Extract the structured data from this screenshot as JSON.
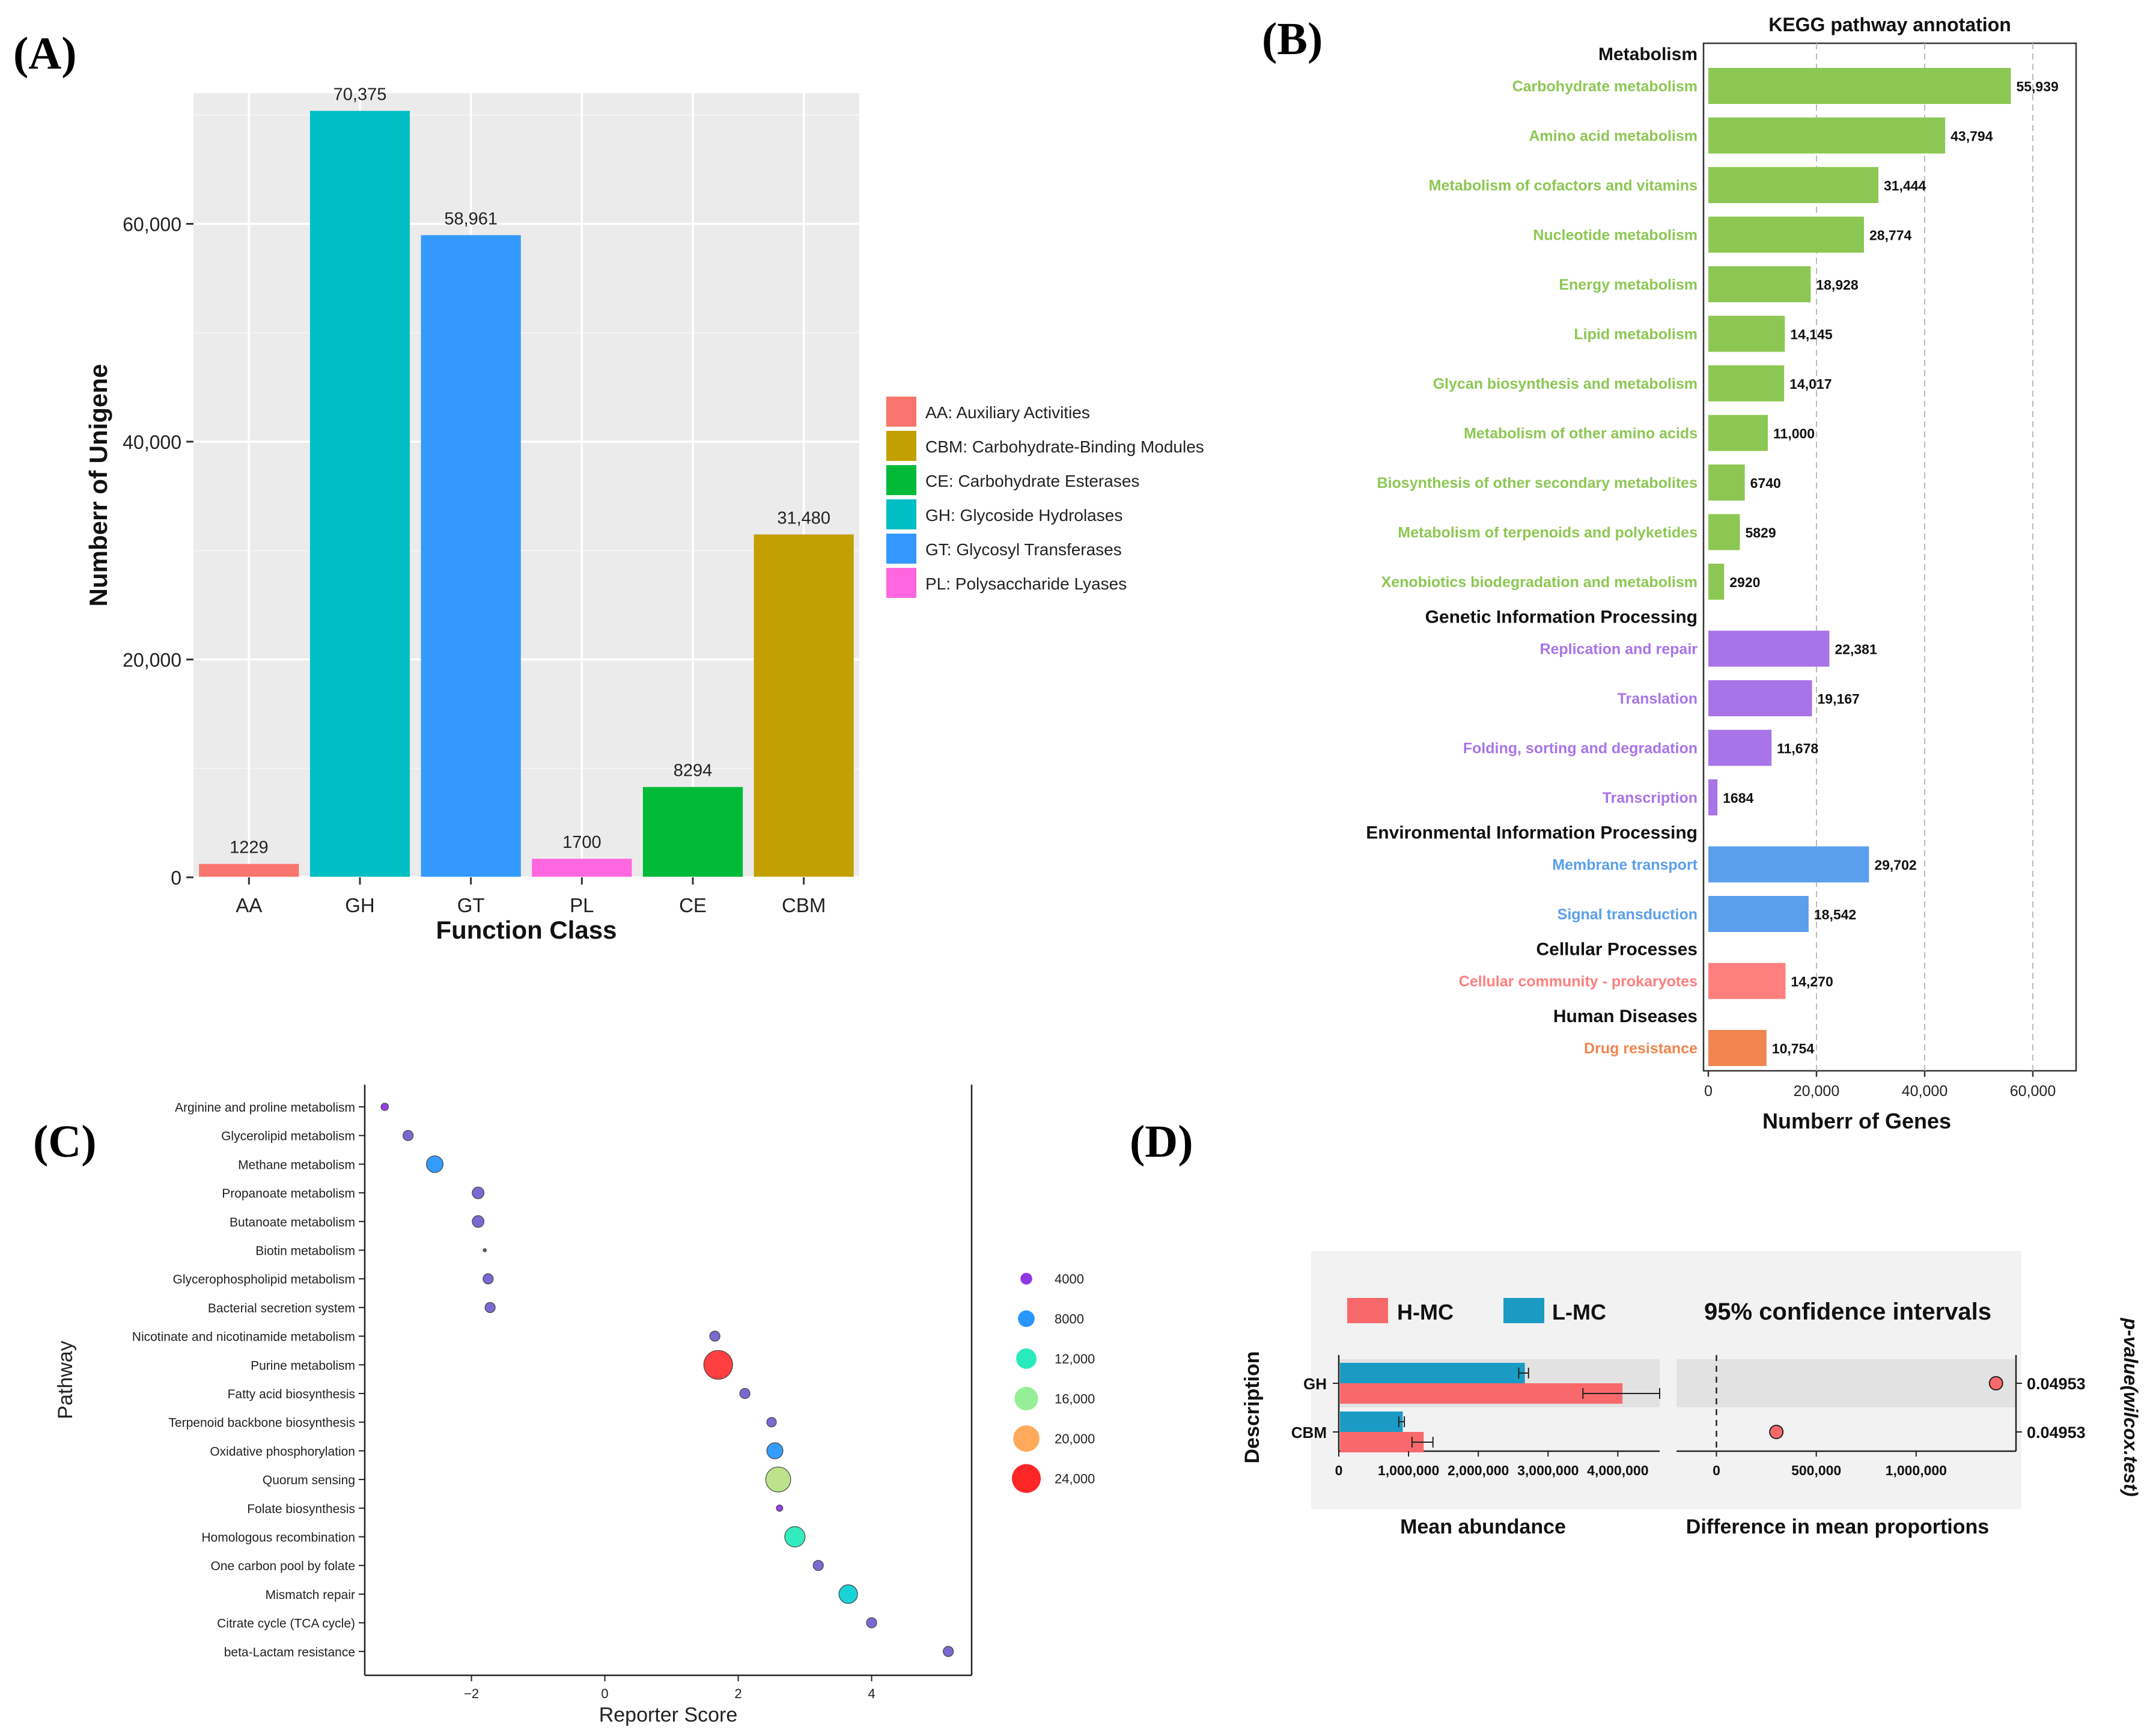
{
  "panels": {
    "A": "(A)",
    "B": "(B)",
    "C": "(C)",
    "D": "(D)"
  },
  "chart_data": [
    {
      "id": "A",
      "type": "bar",
      "title": "",
      "xlabel": "Function Class",
      "ylabel": "Numberr of Unigene",
      "categories": [
        "AA",
        "GH",
        "GT",
        "PL",
        "CE",
        "CBM"
      ],
      "values": [
        1229,
        70375,
        58961,
        1700,
        8294,
        31480
      ],
      "value_labels": [
        "1229",
        "70,375",
        "58,961",
        "1700",
        "8294",
        "31,480"
      ],
      "colors": [
        "#F8766D",
        "#00BFC4",
        "#3399FF",
        "#FF66E0",
        "#00BA38",
        "#C1A000"
      ],
      "ylim": [
        0,
        72000
      ],
      "yticks": [
        0,
        20000,
        40000,
        60000
      ],
      "ytick_labels": [
        "0",
        "20,000",
        "40,000",
        "60,000"
      ],
      "grid": true,
      "legend": {
        "position": "right",
        "items": [
          {
            "label": "AA: Auxiliary Activities",
            "color": "#F8766D"
          },
          {
            "label": "CBM: Carbohydrate-Binding Modules",
            "color": "#C1A000"
          },
          {
            "label": "CE: Carbohydrate Esterases",
            "color": "#00BA38"
          },
          {
            "label": "GH: Glycoside Hydrolases",
            "color": "#00BFC4"
          },
          {
            "label": "GT: Glycosyl Transferases",
            "color": "#3399FF"
          },
          {
            "label": "PL: Polysaccharide Lyases",
            "color": "#FF66E0"
          }
        ]
      }
    },
    {
      "id": "B",
      "type": "bar",
      "orientation": "horizontal",
      "title": "KEGG pathway annotation",
      "xlabel": "Numberr of Genes",
      "xlim": [
        0,
        68000
      ],
      "xticks": [
        0,
        20000,
        40000,
        60000
      ],
      "xtick_labels": [
        "0",
        "20,000",
        "40,000",
        "60,000"
      ],
      "groups": [
        {
          "name": "Metabolism",
          "color": "#8DC753",
          "items": [
            {
              "label": "Carbohydrate metabolism",
              "value": 55939,
              "value_label": "55,939"
            },
            {
              "label": "Amino acid metabolism",
              "value": 43794,
              "value_label": "43,794"
            },
            {
              "label": "Metabolism of cofactors and vitamins",
              "value": 31444,
              "value_label": "31,444"
            },
            {
              "label": "Nucleotide metabolism",
              "value": 28774,
              "value_label": "28,774"
            },
            {
              "label": "Energy metabolism",
              "value": 18928,
              "value_label": "18,928"
            },
            {
              "label": "Lipid metabolism",
              "value": 14145,
              "value_label": "14,145"
            },
            {
              "label": "Glycan biosynthesis and metabolism",
              "value": 14017,
              "value_label": "14,017"
            },
            {
              "label": "Metabolism of other amino acids",
              "value": 11000,
              "value_label": "11,000"
            },
            {
              "label": "Biosynthesis of other secondary metabolites",
              "value": 6740,
              "value_label": "6740"
            },
            {
              "label": "Metabolism of terpenoids and polyketides",
              "value": 5829,
              "value_label": "5829"
            },
            {
              "label": "Xenobiotics biodegradation and metabolism",
              "value": 2920,
              "value_label": "2920"
            }
          ]
        },
        {
          "name": "Genetic Information Processing",
          "color": "#A974E8",
          "items": [
            {
              "label": "Replication and repair",
              "value": 22381,
              "value_label": "22,381"
            },
            {
              "label": "Translation",
              "value": 19167,
              "value_label": "19,167"
            },
            {
              "label": "Folding, sorting and degradation",
              "value": 11678,
              "value_label": "11,678"
            },
            {
              "label": "Transcription",
              "value": 1684,
              "value_label": "1684"
            }
          ]
        },
        {
          "name": "Environmental Information Processing",
          "color": "#5B9FEC",
          "items": [
            {
              "label": "Membrane transport",
              "value": 29702,
              "value_label": "29,702"
            },
            {
              "label": "Signal transduction",
              "value": 18542,
              "value_label": "18,542"
            }
          ]
        },
        {
          "name": "Cellular Processes",
          "color": "#FF7F7F",
          "items": [
            {
              "label": "Cellular community - prokaryotes",
              "value": 14270,
              "value_label": "14,270"
            }
          ]
        },
        {
          "name": "Human Diseases",
          "color": "#F0854F",
          "items": [
            {
              "label": "Drug resistance",
              "value": 10754,
              "value_label": "10,754"
            }
          ]
        }
      ]
    },
    {
      "id": "C",
      "type": "scatter",
      "title": "",
      "xlabel": "Reporter Score",
      "ylabel": "Pathway",
      "xlim": [
        -3.6,
        5.5
      ],
      "xticks": [
        -2,
        0,
        2,
        4
      ],
      "xtick_labels": [
        "−2",
        "0",
        "2",
        "4"
      ],
      "points": [
        {
          "pathway": "Arginine and proline metabolism",
          "x": -3.3,
          "size": 1600,
          "color": "#8A2BE2"
        },
        {
          "pathway": "Glycerolipid metabolism",
          "x": -2.95,
          "size": 3000,
          "color": "#6A5ACD"
        },
        {
          "pathway": "Methane metabolism",
          "x": -2.55,
          "size": 8000,
          "color": "#1E90FF"
        },
        {
          "pathway": "Propanoate metabolism",
          "x": -1.9,
          "size": 4000,
          "color": "#6A5ACD"
        },
        {
          "pathway": "Butanoate metabolism",
          "x": -1.9,
          "size": 4000,
          "color": "#6A5ACD"
        },
        {
          "pathway": "Biotin metabolism",
          "x": -1.8,
          "size": 300,
          "color": "#555555"
        },
        {
          "pathway": "Glycerophospholipid metabolism",
          "x": -1.75,
          "size": 3000,
          "color": "#6A5ACD"
        },
        {
          "pathway": "Bacterial secretion system",
          "x": -1.72,
          "size": 3000,
          "color": "#6A5ACD"
        },
        {
          "pathway": "Nicotinate and nicotinamide metabolism",
          "x": 1.65,
          "size": 3000,
          "color": "#6A5ACD"
        },
        {
          "pathway": "Purine metabolism",
          "x": 1.7,
          "size": 24000,
          "color": "#FF2A2A"
        },
        {
          "pathway": "Fatty acid biosynthesis",
          "x": 2.1,
          "size": 3000,
          "color": "#6A5ACD"
        },
        {
          "pathway": "Terpenoid backbone biosynthesis",
          "x": 2.5,
          "size": 2600,
          "color": "#6A5ACD"
        },
        {
          "pathway": "Oxidative phosphorylation",
          "x": 2.55,
          "size": 7500,
          "color": "#1E90FF"
        },
        {
          "pathway": "Quorum sensing",
          "x": 2.6,
          "size": 18000,
          "color": "#B5E080"
        },
        {
          "pathway": "Folate biosynthesis",
          "x": 2.62,
          "size": 1200,
          "color": "#8A2BE2"
        },
        {
          "pathway": "Homologous recombination",
          "x": 2.85,
          "size": 12000,
          "color": "#1DE9B6"
        },
        {
          "pathway": "One carbon pool by folate",
          "x": 3.2,
          "size": 3000,
          "color": "#6A5ACD"
        },
        {
          "pathway": "Mismatch repair",
          "x": 3.65,
          "size": 10000,
          "color": "#00CED1"
        },
        {
          "pathway": "Citrate cycle (TCA cycle)",
          "x": 4.0,
          "size": 3000,
          "color": "#6A5ACD"
        },
        {
          "pathway": "beta-Lactam resistance",
          "x": 5.15,
          "size": 3000,
          "color": "#6A5ACD"
        }
      ],
      "size_legend": [
        {
          "label": "4000",
          "size": 4000,
          "color": "#8A2BE2"
        },
        {
          "label": "8000",
          "size": 8000,
          "color": "#1E90FF"
        },
        {
          "label": "12,000",
          "size": 12000,
          "color": "#1DE9B6"
        },
        {
          "label": "16,000",
          "size": 16000,
          "color": "#90EE90"
        },
        {
          "label": "20,000",
          "size": 20000,
          "color": "#FFA552"
        },
        {
          "label": "24,000",
          "size": 24000,
          "color": "#FF1A1A"
        }
      ]
    },
    {
      "id": "D",
      "type": "bar",
      "subtype": "extended-error-bar",
      "ylabel": "Description",
      "categories": [
        "GH",
        "CBM"
      ],
      "legend": [
        {
          "label": "H-MC",
          "color": "#F8696B"
        },
        {
          "label": "L-MC",
          "color": "#1A9BC4"
        }
      ],
      "mean_abundance": {
        "xlabel": "Mean abundance",
        "xlim": [
          0,
          4600000
        ],
        "xticks": [
          0,
          1000000,
          2000000,
          3000000,
          4000000
        ],
        "xtick_labels": [
          "0",
          "1,000,000",
          "2,000,000",
          "3,000,000",
          "4,000,000"
        ],
        "series": [
          {
            "name": "L-MC",
            "values": [
              2650000,
              900000
            ],
            "errors": [
              70000,
              40000
            ]
          },
          {
            "name": "H-MC",
            "values": [
              4050000,
              1200000
            ],
            "errors": [
              550000,
              150000
            ]
          }
        ]
      },
      "difference": {
        "title": "95% confidence intervals",
        "xlabel": "Difference in mean proportions",
        "xlim": [
          -200000,
          1500000
        ],
        "xticks": [
          0,
          500000,
          1000000
        ],
        "xtick_labels": [
          "0",
          "500,000",
          "1,000,000"
        ],
        "values": [
          1400000,
          300000
        ]
      },
      "p_values": {
        "label": "p-value(wilcox.test)",
        "values": [
          "0.04953",
          "0.04953"
        ]
      }
    }
  ]
}
